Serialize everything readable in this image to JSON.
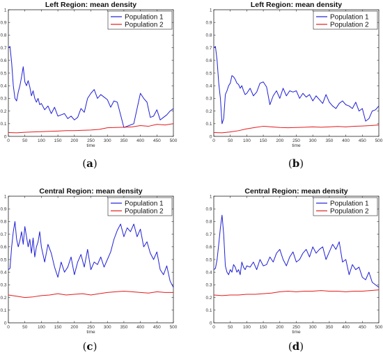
{
  "chart_data": [
    {
      "type": "line",
      "panel_label": "(a)",
      "title": "Left Region: mean density",
      "xlabel": "time",
      "ylabel": "",
      "xlim": [
        0,
        500
      ],
      "ylim": [
        0,
        1
      ],
      "xticks": [
        0,
        50,
        100,
        150,
        200,
        250,
        300,
        350,
        400,
        450,
        500
      ],
      "yticks": [
        0,
        0.1,
        0.2,
        0.3,
        0.4,
        0.5,
        0.6,
        0.7,
        0.8,
        0.9,
        1
      ],
      "legend": "top-right",
      "series": [
        {
          "name": "Population 1",
          "color": "#1f1fd6",
          "x": [
            0,
            5,
            10,
            15,
            20,
            25,
            30,
            35,
            40,
            45,
            50,
            55,
            60,
            65,
            70,
            75,
            80,
            85,
            90,
            95,
            100,
            110,
            120,
            130,
            140,
            150,
            160,
            170,
            180,
            190,
            200,
            210,
            220,
            230,
            240,
            250,
            260,
            270,
            280,
            290,
            300,
            310,
            320,
            330,
            340,
            350,
            360,
            370,
            380,
            390,
            400,
            410,
            420,
            430,
            440,
            450,
            460,
            470,
            480,
            490,
            500
          ],
          "y": [
            0.7,
            0.71,
            0.58,
            0.4,
            0.3,
            0.28,
            0.35,
            0.4,
            0.47,
            0.55,
            0.43,
            0.4,
            0.44,
            0.39,
            0.32,
            0.36,
            0.3,
            0.27,
            0.3,
            0.25,
            0.26,
            0.21,
            0.24,
            0.18,
            0.23,
            0.16,
            0.17,
            0.18,
            0.14,
            0.16,
            0.13,
            0.15,
            0.22,
            0.19,
            0.3,
            0.34,
            0.37,
            0.3,
            0.33,
            0.31,
            0.29,
            0.23,
            0.28,
            0.27,
            0.17,
            0.07,
            0.08,
            0.09,
            0.1,
            0.22,
            0.34,
            0.3,
            0.27,
            0.15,
            0.16,
            0.21,
            0.13,
            0.15,
            0.17,
            0.2,
            0.22
          ]
        },
        {
          "name": "Population 2",
          "color": "#e31a1c",
          "x": [
            0,
            25,
            50,
            75,
            100,
            125,
            150,
            175,
            200,
            225,
            250,
            275,
            300,
            325,
            350,
            375,
            400,
            425,
            450,
            475,
            500
          ],
          "y": [
            0.03,
            0.028,
            0.032,
            0.035,
            0.037,
            0.04,
            0.042,
            0.045,
            0.045,
            0.048,
            0.05,
            0.055,
            0.068,
            0.07,
            0.072,
            0.075,
            0.085,
            0.08,
            0.095,
            0.09,
            0.1
          ]
        }
      ]
    },
    {
      "type": "line",
      "panel_label": "(b)",
      "title": "Left Region: mean density",
      "xlabel": "time",
      "ylabel": "",
      "xlim": [
        0,
        500
      ],
      "ylim": [
        0,
        1
      ],
      "xticks": [
        0,
        50,
        100,
        150,
        200,
        250,
        300,
        350,
        400,
        450,
        500
      ],
      "yticks": [
        0,
        0.1,
        0.2,
        0.3,
        0.4,
        0.5,
        0.6,
        0.7,
        0.8,
        0.9,
        1
      ],
      "legend": "top-right",
      "series": [
        {
          "name": "Population 1",
          "color": "#1f1fd6",
          "x": [
            0,
            5,
            10,
            15,
            20,
            25,
            30,
            35,
            40,
            45,
            50,
            55,
            60,
            65,
            70,
            75,
            80,
            85,
            90,
            95,
            100,
            110,
            120,
            130,
            140,
            150,
            160,
            170,
            180,
            190,
            200,
            210,
            220,
            230,
            240,
            250,
            260,
            270,
            280,
            290,
            300,
            310,
            320,
            330,
            340,
            350,
            360,
            370,
            380,
            390,
            400,
            410,
            420,
            430,
            440,
            450,
            460,
            470,
            480,
            490,
            500
          ],
          "y": [
            0.7,
            0.71,
            0.6,
            0.42,
            0.3,
            0.1,
            0.14,
            0.33,
            0.36,
            0.4,
            0.42,
            0.48,
            0.47,
            0.45,
            0.42,
            0.41,
            0.38,
            0.4,
            0.36,
            0.33,
            0.34,
            0.38,
            0.32,
            0.35,
            0.42,
            0.43,
            0.39,
            0.25,
            0.32,
            0.36,
            0.3,
            0.38,
            0.32,
            0.36,
            0.35,
            0.36,
            0.3,
            0.34,
            0.31,
            0.33,
            0.28,
            0.32,
            0.29,
            0.26,
            0.33,
            0.27,
            0.24,
            0.22,
            0.26,
            0.28,
            0.25,
            0.24,
            0.22,
            0.27,
            0.2,
            0.22,
            0.12,
            0.14,
            0.2,
            0.21,
            0.24
          ]
        },
        {
          "name": "Population 2",
          "color": "#e31a1c",
          "x": [
            0,
            25,
            50,
            75,
            100,
            125,
            150,
            175,
            200,
            225,
            250,
            275,
            300,
            325,
            350,
            375,
            400,
            425,
            450,
            475,
            500
          ],
          "y": [
            0.03,
            0.028,
            0.035,
            0.045,
            0.06,
            0.07,
            0.08,
            0.075,
            0.07,
            0.068,
            0.07,
            0.072,
            0.075,
            0.072,
            0.075,
            0.078,
            0.075,
            0.08,
            0.082,
            0.085,
            0.09
          ]
        }
      ]
    },
    {
      "type": "line",
      "panel_label": "(c)",
      "title": "Central Region: mean density",
      "xlabel": "time",
      "ylabel": "",
      "xlim": [
        0,
        500
      ],
      "ylim": [
        0,
        1
      ],
      "xticks": [
        0,
        50,
        100,
        150,
        200,
        250,
        300,
        350,
        400,
        450,
        500
      ],
      "yticks": [
        0,
        0.1,
        0.2,
        0.3,
        0.4,
        0.5,
        0.6,
        0.7,
        0.8,
        0.9,
        1
      ],
      "legend": "top-right",
      "series": [
        {
          "name": "Population 1",
          "color": "#1f1fd6",
          "x": [
            0,
            5,
            10,
            15,
            20,
            25,
            30,
            35,
            40,
            45,
            50,
            55,
            60,
            65,
            70,
            75,
            80,
            85,
            90,
            95,
            100,
            110,
            120,
            130,
            140,
            150,
            160,
            170,
            180,
            190,
            200,
            210,
            220,
            230,
            240,
            250,
            260,
            270,
            280,
            290,
            300,
            310,
            320,
            330,
            340,
            350,
            360,
            370,
            380,
            390,
            400,
            410,
            420,
            430,
            440,
            450,
            460,
            470,
            480,
            490,
            500
          ],
          "y": [
            0.42,
            0.43,
            0.6,
            0.72,
            0.8,
            0.66,
            0.6,
            0.65,
            0.72,
            0.62,
            0.76,
            0.68,
            0.6,
            0.66,
            0.55,
            0.67,
            0.52,
            0.6,
            0.64,
            0.72,
            0.6,
            0.48,
            0.62,
            0.55,
            0.44,
            0.36,
            0.48,
            0.4,
            0.44,
            0.52,
            0.38,
            0.48,
            0.54,
            0.44,
            0.58,
            0.42,
            0.48,
            0.46,
            0.52,
            0.44,
            0.5,
            0.56,
            0.66,
            0.73,
            0.78,
            0.68,
            0.75,
            0.72,
            0.78,
            0.68,
            0.74,
            0.6,
            0.64,
            0.55,
            0.5,
            0.56,
            0.42,
            0.38,
            0.45,
            0.33,
            0.28
          ]
        },
        {
          "name": "Population 2",
          "color": "#e31a1c",
          "x": [
            0,
            25,
            50,
            75,
            100,
            125,
            150,
            175,
            200,
            225,
            250,
            275,
            300,
            325,
            350,
            375,
            400,
            425,
            450,
            475,
            500
          ],
          "y": [
            0.22,
            0.21,
            0.2,
            0.205,
            0.215,
            0.22,
            0.23,
            0.22,
            0.225,
            0.23,
            0.22,
            0.23,
            0.24,
            0.245,
            0.25,
            0.245,
            0.24,
            0.235,
            0.245,
            0.24,
            0.24
          ]
        }
      ]
    },
    {
      "type": "line",
      "panel_label": "(d)",
      "title": "Central Region: mean density",
      "xlabel": "time",
      "ylabel": "",
      "xlim": [
        0,
        500
      ],
      "ylim": [
        0,
        1
      ],
      "xticks": [
        0,
        50,
        100,
        150,
        200,
        250,
        300,
        350,
        400,
        450,
        500
      ],
      "yticks": [
        0,
        0.1,
        0.2,
        0.3,
        0.4,
        0.5,
        0.6,
        0.7,
        0.8,
        0.9,
        1
      ],
      "legend": "top-right",
      "series": [
        {
          "name": "Population 1",
          "color": "#1f1fd6",
          "x": [
            0,
            5,
            10,
            15,
            20,
            25,
            30,
            35,
            40,
            45,
            50,
            55,
            60,
            65,
            70,
            75,
            80,
            85,
            90,
            95,
            100,
            110,
            120,
            130,
            140,
            150,
            160,
            170,
            180,
            190,
            200,
            210,
            220,
            230,
            240,
            250,
            260,
            270,
            280,
            290,
            300,
            310,
            320,
            330,
            340,
            350,
            360,
            370,
            380,
            390,
            400,
            410,
            420,
            430,
            440,
            450,
            460,
            470,
            480,
            490,
            500
          ],
          "y": [
            0.42,
            0.43,
            0.5,
            0.62,
            0.75,
            0.85,
            0.7,
            0.45,
            0.4,
            0.38,
            0.42,
            0.4,
            0.46,
            0.44,
            0.4,
            0.42,
            0.38,
            0.48,
            0.44,
            0.42,
            0.45,
            0.44,
            0.48,
            0.42,
            0.5,
            0.45,
            0.46,
            0.52,
            0.48,
            0.55,
            0.58,
            0.5,
            0.45,
            0.52,
            0.56,
            0.48,
            0.5,
            0.55,
            0.58,
            0.52,
            0.6,
            0.55,
            0.58,
            0.6,
            0.5,
            0.56,
            0.62,
            0.58,
            0.64,
            0.48,
            0.5,
            0.38,
            0.46,
            0.42,
            0.44,
            0.36,
            0.34,
            0.4,
            0.32,
            0.3,
            0.28
          ]
        },
        {
          "name": "Population 2",
          "color": "#e31a1c",
          "x": [
            0,
            25,
            50,
            75,
            100,
            125,
            150,
            175,
            200,
            225,
            250,
            275,
            300,
            325,
            350,
            375,
            400,
            425,
            450,
            475,
            500
          ],
          "y": [
            0.22,
            0.215,
            0.22,
            0.22,
            0.225,
            0.225,
            0.23,
            0.235,
            0.245,
            0.25,
            0.245,
            0.25,
            0.25,
            0.255,
            0.25,
            0.25,
            0.245,
            0.25,
            0.25,
            0.255,
            0.26
          ]
        }
      ]
    }
  ]
}
